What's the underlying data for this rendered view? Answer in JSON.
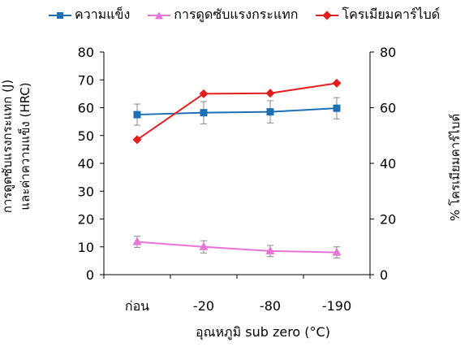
{
  "legend": {
    "items": [
      {
        "label": "ความแข็ง",
        "color": "#1f6fb3",
        "marker": "square"
      },
      {
        "label": "การดูดซับแรงกระแทก",
        "color": "#e874d8",
        "marker": "triangle"
      },
      {
        "label": "โครเมียมคาร์ไบด์",
        "color": "#e41e1e",
        "marker": "diamond"
      }
    ]
  },
  "axes": {
    "ylabel_left_line1": "การดูดซับแรงกระแทก (J)",
    "ylabel_left_line2": "และค่าความแข็ง (HRC)",
    "ylabel_right": "% โครเมียมคาร์ไบด์",
    "xlabel": "อุณหภูมิ sub zero (°C)"
  },
  "chart_data": {
    "type": "line",
    "categories": [
      "ก่อน",
      "-20",
      "-80",
      "-190"
    ],
    "ylim_left": [
      0,
      80
    ],
    "yticks_left": [
      "0",
      "10",
      "20",
      "30",
      "40",
      "50",
      "60",
      "70",
      "80"
    ],
    "ylim_right": [
      0,
      80
    ],
    "yticks_right": [
      "0",
      "20",
      "40",
      "60",
      "80"
    ],
    "series": [
      {
        "name": "ความแข็ง",
        "axis": "left",
        "color": "#1f6fb3",
        "marker": "square",
        "values": [
          57.5,
          58.2,
          58.5,
          59.8
        ],
        "errors": [
          3.8,
          4.0,
          4.0,
          3.8
        ]
      },
      {
        "name": "การดูดซับแรงกระแทก",
        "axis": "left",
        "color": "#e874d8",
        "marker": "triangle",
        "values": [
          11.8,
          10.0,
          8.5,
          8.0
        ],
        "errors": [
          2.0,
          2.2,
          2.0,
          2.0
        ]
      },
      {
        "name": "โครเมียมคาร์ไบด์",
        "axis": "right",
        "color": "#e41e1e",
        "marker": "diamond",
        "values": [
          48.5,
          65.0,
          65.2,
          68.8
        ]
      }
    ]
  }
}
